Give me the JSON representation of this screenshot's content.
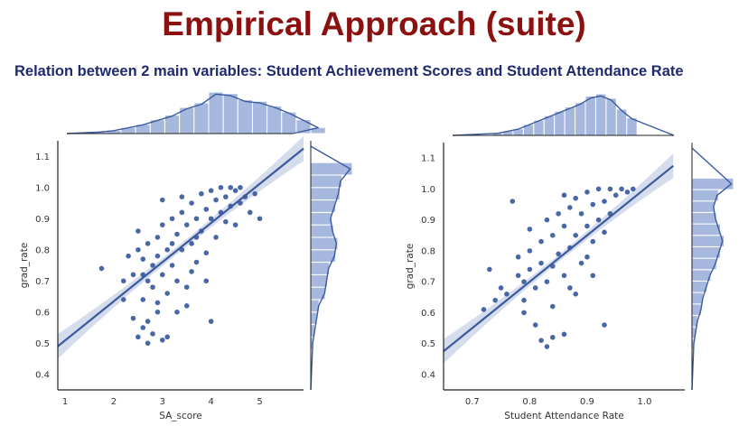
{
  "slide": {
    "title": "Empirical Approach (suite)",
    "subtitle": "Relation between 2 main variables: Student Achievement Scores and Student Attendance Rate"
  },
  "colors": {
    "title": "#8b1010",
    "subtitle": "#1f2a6e",
    "points": "#3b5a9d",
    "regression": "#3b5a9d",
    "ci_band": "#c3cfe6",
    "hist_fill": "#a7b8de",
    "hist_edge": "#ffffff"
  },
  "chart_data": [
    {
      "type": "scatter",
      "xlabel": "SA_score",
      "ylabel": "grad_rate",
      "xlim": [
        0.85,
        5.9
      ],
      "ylim": [
        0.35,
        1.15
      ],
      "xticks": [
        "1",
        "2",
        "3",
        "4",
        "5"
      ],
      "xtick_values": [
        1,
        2,
        3,
        4,
        5
      ],
      "yticks": [
        "0.4",
        "0.5",
        "0.6",
        "0.7",
        "0.8",
        "0.9",
        "1.0",
        "1.1"
      ],
      "ytick_values": [
        0.4,
        0.5,
        0.6,
        0.7,
        0.8,
        0.9,
        1.0,
        1.1
      ],
      "regression": {
        "x": [
          0.85,
          5.9
        ],
        "y": [
          0.49,
          1.125
        ]
      },
      "points": [
        [
          1.75,
          0.74
        ],
        [
          2.2,
          0.64
        ],
        [
          2.4,
          0.58
        ],
        [
          2.5,
          0.52
        ],
        [
          2.6,
          0.55
        ],
        [
          2.6,
          0.64
        ],
        [
          2.7,
          0.57
        ],
        [
          2.7,
          0.5
        ],
        [
          2.8,
          0.53
        ],
        [
          2.9,
          0.63
        ],
        [
          3.0,
          0.51
        ],
        [
          3.1,
          0.52
        ],
        [
          2.2,
          0.7
        ],
        [
          2.3,
          0.78
        ],
        [
          2.4,
          0.72
        ],
        [
          2.5,
          0.8
        ],
        [
          2.5,
          0.86
        ],
        [
          2.6,
          0.77
        ],
        [
          2.7,
          0.82
        ],
        [
          2.7,
          0.7
        ],
        [
          2.8,
          0.75
        ],
        [
          2.8,
          0.68
        ],
        [
          2.9,
          0.84
        ],
        [
          2.9,
          0.78
        ],
        [
          3.0,
          0.72
        ],
        [
          3.0,
          0.88
        ],
        [
          3.1,
          0.8
        ],
        [
          3.1,
          0.66
        ],
        [
          3.2,
          0.9
        ],
        [
          3.2,
          0.75
        ],
        [
          3.3,
          0.85
        ],
        [
          3.3,
          0.7
        ],
        [
          3.4,
          0.92
        ],
        [
          3.4,
          0.8
        ],
        [
          3.5,
          0.88
        ],
        [
          3.5,
          0.62
        ],
        [
          3.6,
          0.95
        ],
        [
          3.6,
          0.82
        ],
        [
          3.7,
          0.9
        ],
        [
          3.7,
          0.76
        ],
        [
          3.8,
          0.98
        ],
        [
          3.8,
          0.86
        ],
        [
          3.9,
          0.93
        ],
        [
          3.9,
          0.7
        ],
        [
          4.0,
          0.99
        ],
        [
          4.0,
          0.9
        ],
        [
          4.1,
          0.96
        ],
        [
          4.1,
          0.84
        ],
        [
          4.2,
          1.0
        ],
        [
          4.2,
          0.92
        ],
        [
          4.3,
          0.97
        ],
        [
          4.4,
          1.0
        ],
        [
          4.4,
          0.94
        ],
        [
          4.5,
          0.99
        ],
        [
          4.5,
          0.88
        ],
        [
          4.6,
          1.0
        ],
        [
          4.7,
          0.97
        ],
        [
          4.8,
          0.92
        ],
        [
          4.9,
          0.98
        ],
        [
          5.0,
          0.9
        ],
        [
          4.0,
          0.57
        ],
        [
          3.6,
          0.73
        ],
        [
          3.9,
          0.79
        ],
        [
          3.5,
          0.68
        ],
        [
          3.3,
          0.6
        ],
        [
          2.9,
          0.6
        ],
        [
          3.7,
          0.84
        ],
        [
          4.3,
          0.89
        ],
        [
          4.6,
          0.95
        ],
        [
          3.2,
          0.82
        ],
        [
          2.6,
          0.72
        ],
        [
          3.0,
          0.96
        ],
        [
          3.4,
          0.97
        ]
      ],
      "marginal_top": {
        "bin_start": 1.55,
        "bin_width": 0.3,
        "counts": [
          1,
          2,
          4,
          6,
          9,
          12,
          17,
          20,
          27,
          26,
          22,
          21,
          18,
          14,
          9,
          4
        ]
      },
      "marginal_right": {
        "bin_start": 0.48,
        "bin_width": 0.04,
        "counts": [
          1,
          2,
          3,
          4,
          7,
          8,
          9,
          12,
          13,
          11,
          10,
          12,
          14,
          15,
          20
        ]
      }
    },
    {
      "type": "scatter",
      "xlabel": "Student Attendance Rate",
      "ylabel": "grad_rate",
      "xlim": [
        0.65,
        1.07
      ],
      "ylim": [
        0.35,
        1.15
      ],
      "xticks": [
        "0.7",
        "0.8",
        "0.9",
        "1.0"
      ],
      "xtick_values": [
        0.7,
        0.8,
        0.9,
        1.0
      ],
      "yticks": [
        "0.4",
        "0.5",
        "0.6",
        "0.7",
        "0.8",
        "0.9",
        "1.0",
        "1.1"
      ],
      "ytick_values": [
        0.4,
        0.5,
        0.6,
        0.7,
        0.8,
        0.9,
        1.0,
        1.1
      ],
      "regression": {
        "x": [
          0.65,
          1.05
        ],
        "y": [
          0.475,
          1.075
        ]
      },
      "points": [
        [
          0.72,
          0.61
        ],
        [
          0.73,
          0.74
        ],
        [
          0.74,
          0.64
        ],
        [
          0.75,
          0.68
        ],
        [
          0.76,
          0.66
        ],
        [
          0.77,
          0.96
        ],
        [
          0.78,
          0.72
        ],
        [
          0.78,
          0.78
        ],
        [
          0.79,
          0.64
        ],
        [
          0.79,
          0.6
        ],
        [
          0.8,
          0.87
        ],
        [
          0.8,
          0.74
        ],
        [
          0.81,
          0.68
        ],
        [
          0.81,
          0.56
        ],
        [
          0.82,
          0.83
        ],
        [
          0.82,
          0.76
        ],
        [
          0.83,
          0.9
        ],
        [
          0.83,
          0.7
        ],
        [
          0.84,
          0.85
        ],
        [
          0.84,
          0.62
        ],
        [
          0.85,
          0.92
        ],
        [
          0.85,
          0.79
        ],
        [
          0.86,
          0.88
        ],
        [
          0.86,
          0.72
        ],
        [
          0.87,
          0.94
        ],
        [
          0.87,
          0.81
        ],
        [
          0.88,
          0.97
        ],
        [
          0.88,
          0.85
        ],
        [
          0.89,
          0.92
        ],
        [
          0.89,
          0.76
        ],
        [
          0.9,
          0.99
        ],
        [
          0.9,
          0.88
        ],
        [
          0.91,
          0.95
        ],
        [
          0.91,
          0.83
        ],
        [
          0.92,
          1.0
        ],
        [
          0.92,
          0.9
        ],
        [
          0.93,
          0.96
        ],
        [
          0.93,
          0.86
        ],
        [
          0.94,
          1.0
        ],
        [
          0.94,
          0.92
        ],
        [
          0.95,
          0.98
        ],
        [
          0.96,
          1.0
        ],
        [
          0.97,
          0.99
        ],
        [
          0.98,
          1.0
        ],
        [
          0.84,
          0.52
        ],
        [
          0.86,
          0.53
        ],
        [
          0.82,
          0.51
        ],
        [
          0.83,
          0.49
        ],
        [
          0.93,
          0.56
        ],
        [
          0.87,
          0.68
        ],
        [
          0.9,
          0.78
        ],
        [
          0.84,
          0.75
        ],
        [
          0.88,
          0.66
        ],
        [
          0.91,
          0.72
        ],
        [
          0.79,
          0.7
        ],
        [
          0.86,
          0.98
        ],
        [
          0.8,
          0.8
        ]
      ],
      "marginal_top": {
        "bin_start": 0.735,
        "bin_width": 0.018,
        "counts": [
          1,
          2,
          3,
          5,
          7,
          9,
          11,
          13,
          15,
          18,
          19,
          17,
          12,
          8
        ]
      },
      "marginal_right": {
        "bin_start": 0.48,
        "bin_width": 0.037,
        "counts": [
          1,
          2,
          3,
          5,
          6,
          8,
          10,
          13,
          15,
          17,
          15,
          13,
          12,
          14,
          22
        ]
      }
    }
  ]
}
